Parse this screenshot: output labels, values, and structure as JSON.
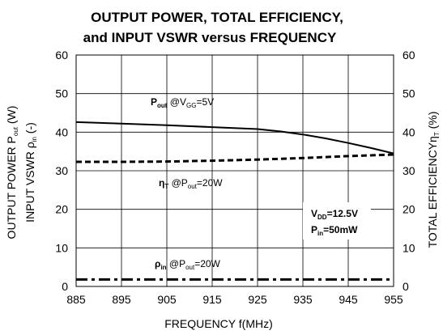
{
  "chart_data": {
    "type": "line",
    "title_line1": "OUTPUT POWER, TOTAL EFFICIENCY,",
    "title_line2": "and INPUT VSWR versus FREQUENCY",
    "xlabel": "FREQUENCY f(MHz)",
    "ylabel_left_line1": {
      "pre": "OUTPUT POWER P",
      "sub": "out",
      "post": " (W)"
    },
    "ylabel_left_line2": {
      "pre": "INPUT VSWR ",
      "sym": "ρ",
      "sub": "in",
      "post": " (-)"
    },
    "ylabel_right": {
      "pre": "TOTAL EFFICIENCY",
      "sym": "η",
      "sub": "T",
      "post": " (%)"
    },
    "xlim": [
      885,
      955
    ],
    "ylim": [
      0,
      60
    ],
    "xticks": [
      885,
      895,
      905,
      915,
      925,
      935,
      945,
      955
    ],
    "yticks_left": [
      0,
      10,
      20,
      30,
      40,
      50,
      60
    ],
    "yticks_right": [
      0,
      10,
      20,
      30,
      40,
      50,
      60
    ],
    "grid": true,
    "series": [
      {
        "key": "pout",
        "style": "solid",
        "x": [
          885,
          895,
          905,
          915,
          925,
          930,
          935,
          940,
          945,
          950,
          955
        ],
        "y": [
          42.6,
          42.2,
          41.8,
          41.3,
          40.8,
          40.2,
          39.4,
          38.4,
          37.2,
          35.9,
          34.5
        ]
      },
      {
        "key": "eta",
        "style": "dash",
        "x": [
          885,
          895,
          905,
          915,
          925,
          935,
          945,
          955
        ],
        "y": [
          32.3,
          32.3,
          32.4,
          32.6,
          32.9,
          33.3,
          33.8,
          34.2
        ]
      },
      {
        "key": "rho",
        "style": "dashdot",
        "x": [
          885,
          895,
          905,
          915,
          925,
          935,
          945,
          955
        ],
        "y": [
          1.8,
          1.8,
          1.8,
          1.8,
          1.8,
          1.8,
          1.8,
          1.8
        ]
      }
    ],
    "annotations": {
      "pout": {
        "main": "P",
        "main_sub": "out",
        "rest": " @V",
        "rest_sub": "GG",
        "rest2": "=5V"
      },
      "eta": {
        "main": "η",
        "main_sub": "T",
        "rest": " @P",
        "rest_sub": "out",
        "rest2": "=20W"
      },
      "rho": {
        "main": "ρ",
        "main_sub": "in",
        "rest": " @P",
        "rest_sub": "out",
        "rest2": "=20W"
      },
      "cond_vdd": {
        "main": "V",
        "main_sub": "DD",
        "rest2": "=12.5V"
      },
      "cond_pin": {
        "main": "P",
        "main_sub": "in",
        "rest2": "=50mW"
      }
    }
  }
}
